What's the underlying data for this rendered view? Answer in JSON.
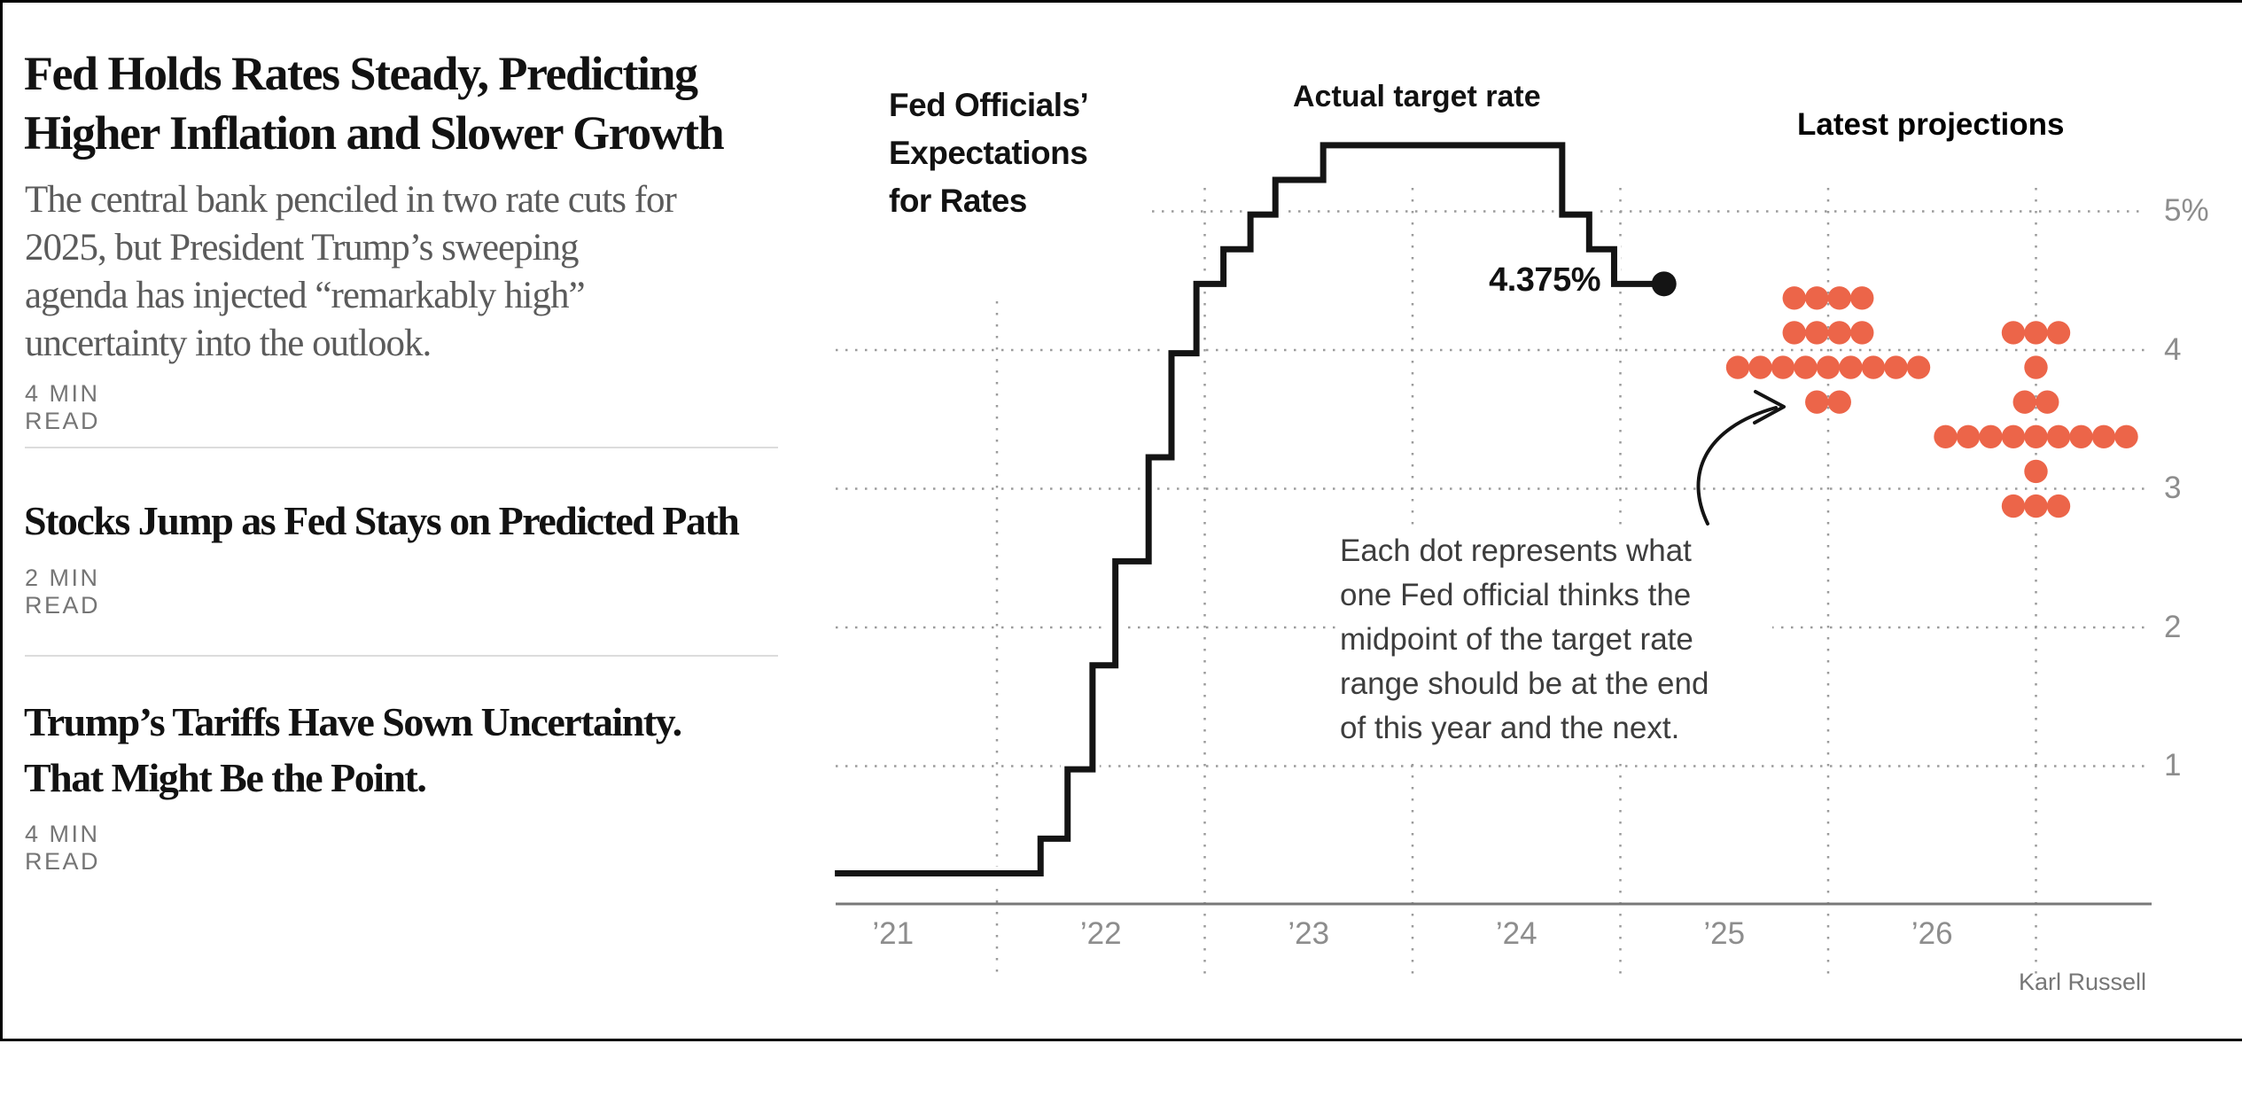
{
  "page": {
    "frame_color": "#000000",
    "background": "#ffffff"
  },
  "articles": [
    {
      "headline": "Fed Holds Rates Steady, Predicting\nHigher Inflation and Slower Growth",
      "summary": "The central bank penciled in two rate cuts for\n2025, but President Trump’s sweeping\nagenda has injected “remarkably high”\nuncertainty into the outlook.",
      "read_time": "4 MIN READ"
    },
    {
      "headline": "Stocks Jump as Fed Stays on Predicted Path",
      "summary": "",
      "read_time": "2 MIN READ"
    },
    {
      "headline": "Trump’s Tariffs Have Sown Uncertainty.\nThat Might Be the Point.",
      "summary": "",
      "read_time": "4 MIN READ"
    }
  ],
  "chart": {
    "title": "Fed Officials’\nExpectations\nfor Rates",
    "line_label": "Actual target rate",
    "projections_label": "Latest projections",
    "current_rate_label": "4.375%",
    "annotation": "Each dot represents what\none Fed official thinks the\nmidpoint of the target rate\nrange should be at the end\nof this year and the next.",
    "credit": "Karl Russell",
    "colors": {
      "projection_orange": "#EC6549",
      "line_black": "#141414",
      "grid_gray": "#9B9B9B",
      "axis_gray": "#787878",
      "tick_gray": "#8D8D8D"
    },
    "chart_data": {
      "type": "line+dotplot",
      "title": "Fed Officials’ Expectations for Rates",
      "series_label": "Actual target rate",
      "unit": "percent",
      "ylim": [
        0,
        5.75
      ],
      "xlim_years": [
        2021.2,
        2027.5
      ],
      "grid": "dotted",
      "y_ticks": [
        {
          "label": "5%",
          "value": 5
        },
        {
          "label": "4",
          "value": 4
        },
        {
          "label": "3",
          "value": 3
        },
        {
          "label": "2",
          "value": 2
        },
        {
          "label": "1",
          "value": 1
        }
      ],
      "x_ticks": [
        {
          "label": "’21",
          "year": 2021
        },
        {
          "label": "’22",
          "year": 2022
        },
        {
          "label": "’23",
          "year": 2023
        },
        {
          "label": "’24",
          "year": 2024
        },
        {
          "label": "’25",
          "year": 2025
        },
        {
          "label": "’26",
          "year": 2026
        }
      ],
      "x_year_gridlines": [
        2022,
        2023,
        2024,
        2025,
        2026,
        2027
      ],
      "actual_target_rate_steps": [
        {
          "t": 2021.22,
          "rate": 0.125
        },
        {
          "t": 2022.21,
          "rate": 0.375
        },
        {
          "t": 2022.34,
          "rate": 0.875
        },
        {
          "t": 2022.46,
          "rate": 1.625
        },
        {
          "t": 2022.57,
          "rate": 2.375
        },
        {
          "t": 2022.73,
          "rate": 3.125
        },
        {
          "t": 2022.84,
          "rate": 3.875
        },
        {
          "t": 2022.96,
          "rate": 4.375
        },
        {
          "t": 2023.09,
          "rate": 4.625
        },
        {
          "t": 2023.22,
          "rate": 4.875
        },
        {
          "t": 2023.34,
          "rate": 5.125
        },
        {
          "t": 2023.57,
          "rate": 5.375
        },
        {
          "t": 2024.72,
          "rate": 4.875
        },
        {
          "t": 2024.85,
          "rate": 4.625
        },
        {
          "t": 2024.97,
          "rate": 4.375
        },
        {
          "t": 2025.21,
          "rate": 4.375
        }
      ],
      "end_value": 4.375,
      "projections": [
        {
          "year": "2025",
          "plotted_at_t": 2026.0,
          "dots": [
            {
              "rate": 4.375,
              "count": 4
            },
            {
              "rate": 4.125,
              "count": 4
            },
            {
              "rate": 3.875,
              "count": 9
            },
            {
              "rate": 3.625,
              "count": 2
            }
          ]
        },
        {
          "year": "2026",
          "plotted_at_t": 2027.0,
          "dots": [
            {
              "rate": 4.125,
              "count": 3
            },
            {
              "rate": 3.875,
              "count": 1
            },
            {
              "rate": 3.625,
              "count": 2
            },
            {
              "rate": 3.375,
              "count": 9
            },
            {
              "rate": 3.125,
              "count": 1
            },
            {
              "rate": 2.875,
              "count": 3
            }
          ]
        }
      ]
    }
  }
}
